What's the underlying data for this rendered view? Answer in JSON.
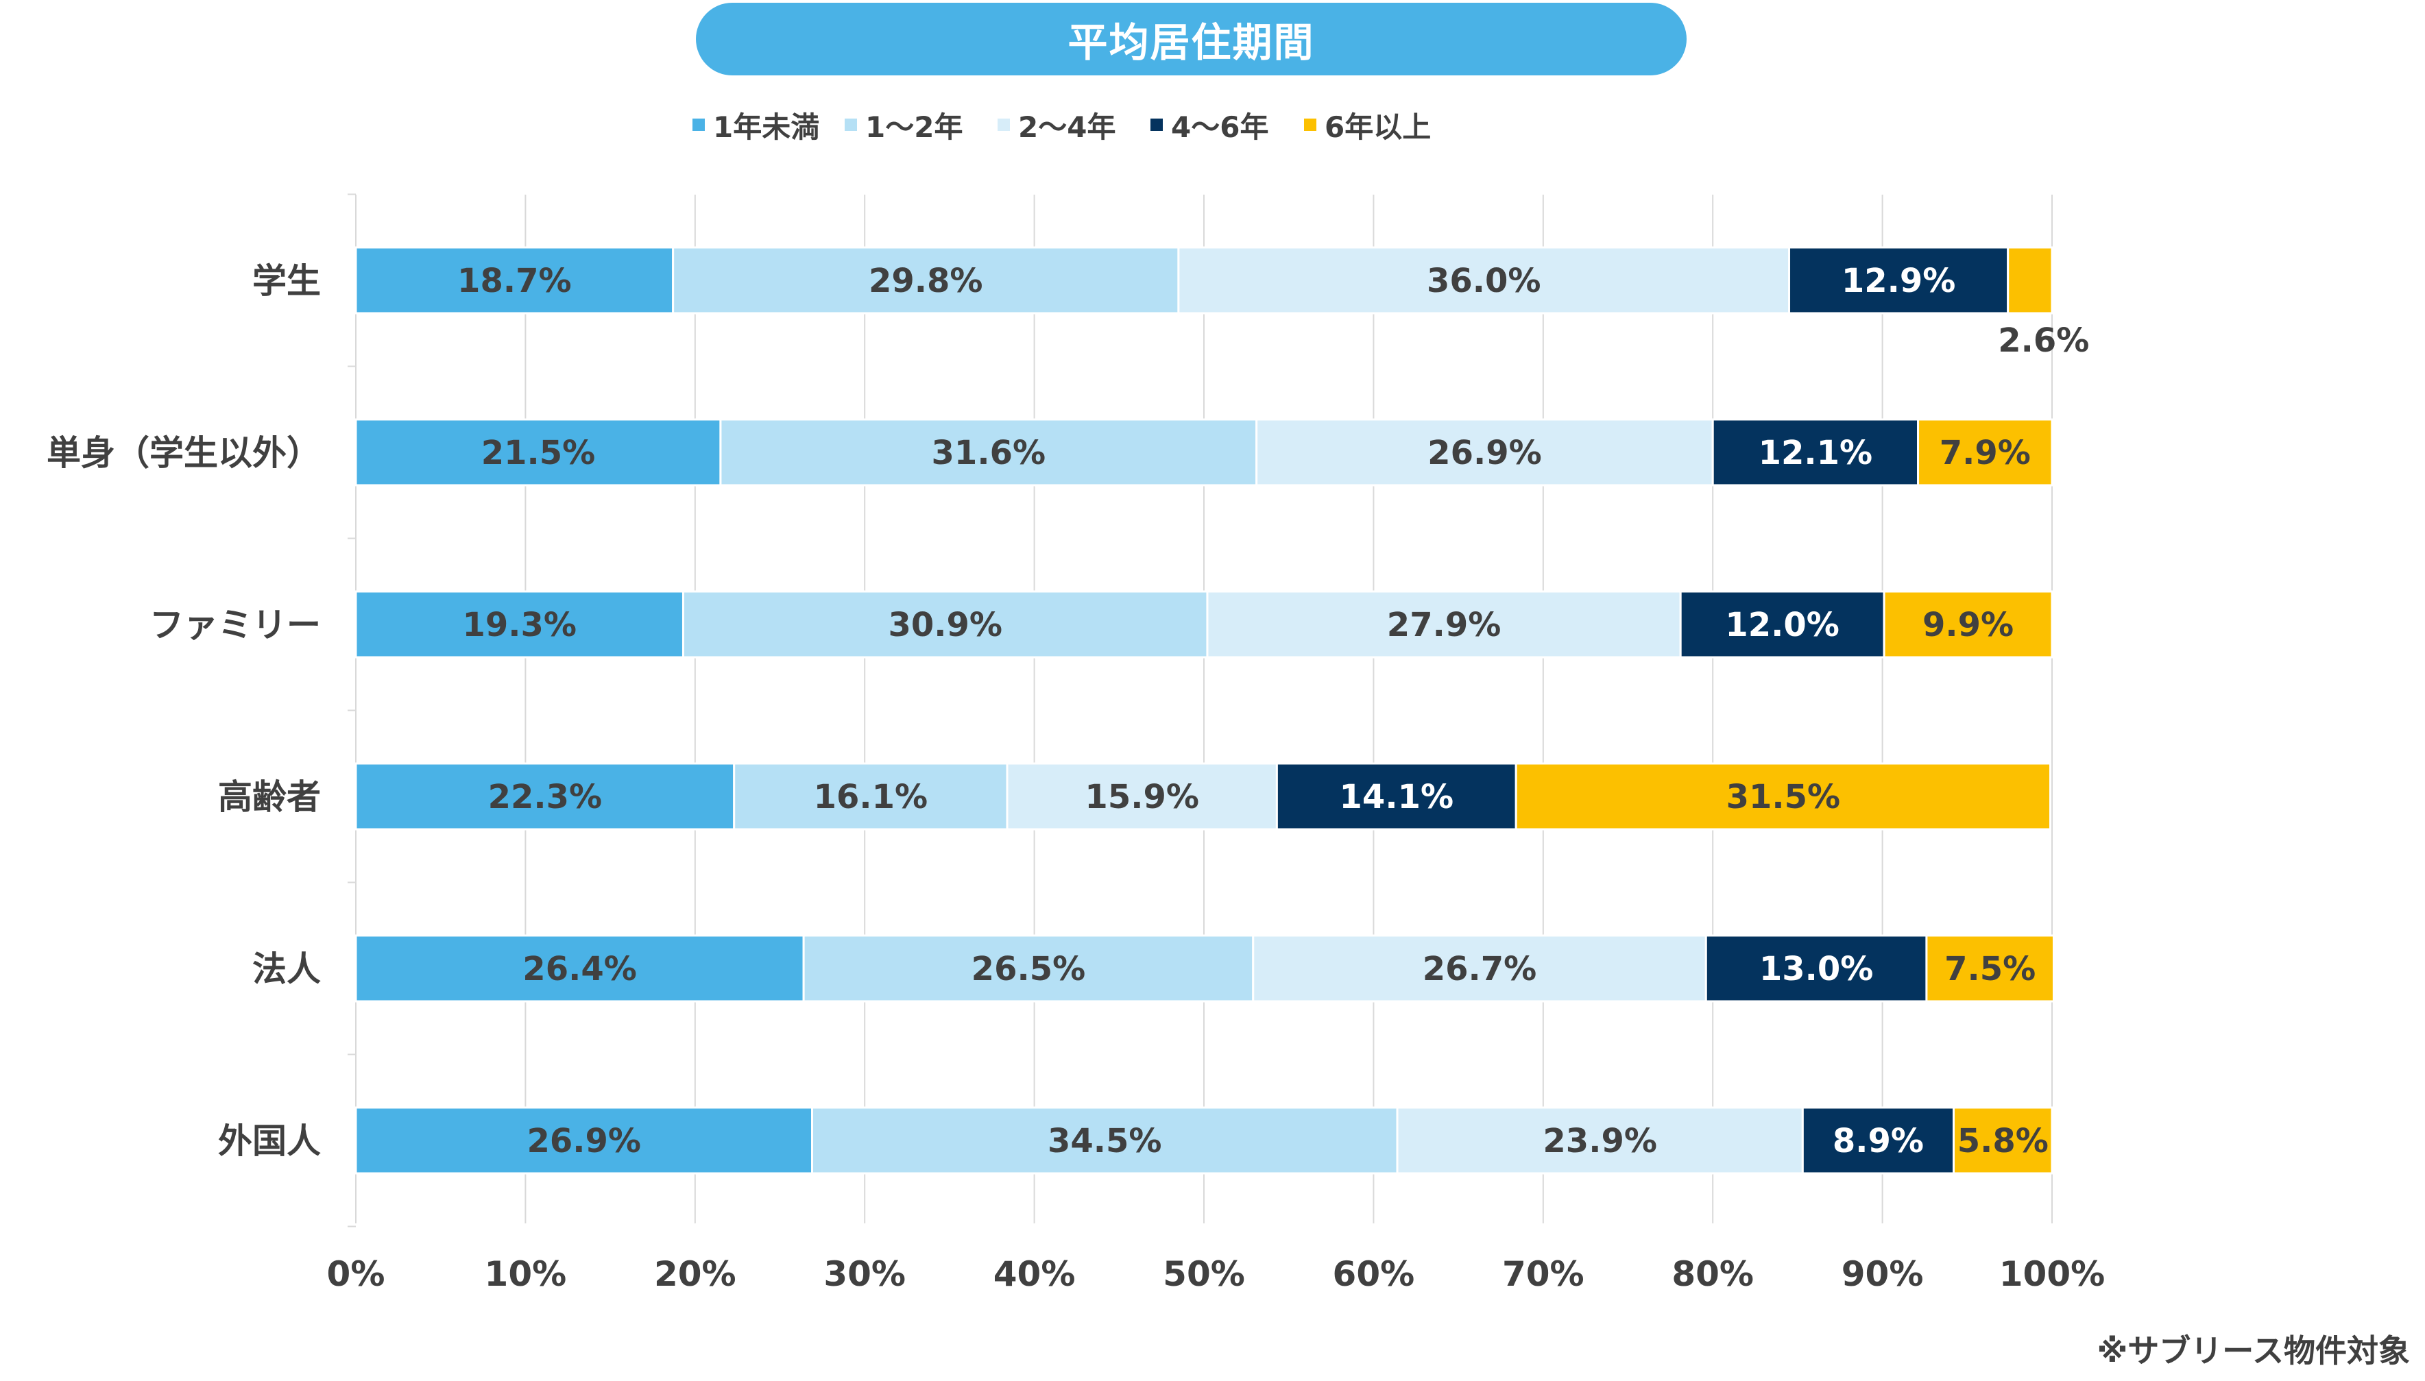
{
  "chart_data": {
    "type": "bar",
    "orientation": "horizontal",
    "stacked": true,
    "title": "平均居住期間",
    "categories": [
      "学生",
      "単身（学生以外）",
      "ファミリー",
      "高齢者",
      "法人",
      "外国人"
    ],
    "series": [
      {
        "name": "1年未満",
        "color": "#4AB2E6",
        "label_color": "#404040",
        "values": [
          18.7,
          21.5,
          19.3,
          22.3,
          26.4,
          26.9
        ]
      },
      {
        "name": "1～2年",
        "color": "#B5E0F5",
        "label_color": "#404040",
        "values": [
          29.8,
          31.6,
          30.9,
          16.1,
          26.5,
          34.5
        ]
      },
      {
        "name": "2～4年",
        "color": "#D7EDF9",
        "label_color": "#404040",
        "values": [
          36.0,
          26.9,
          27.9,
          15.9,
          26.7,
          23.9
        ]
      },
      {
        "name": "4～6年",
        "color": "#04335E",
        "label_color": "#ffffff",
        "values": [
          12.9,
          12.1,
          12.0,
          14.1,
          13.0,
          8.9
        ]
      },
      {
        "name": "6年以上",
        "color": "#FCC000",
        "label_color": "#404040",
        "values": [
          2.6,
          7.9,
          9.9,
          31.5,
          7.5,
          5.8
        ]
      }
    ],
    "value_labels": [
      [
        "18.7%",
        "29.8%",
        "36.0%",
        "12.9%",
        "2.6%"
      ],
      [
        "21.5%",
        "31.6%",
        "26.9%",
        "12.1%",
        "7.9%"
      ],
      [
        "19.3%",
        "30.9%",
        "27.9%",
        "12.0%",
        "9.9%"
      ],
      [
        "22.3%",
        "16.1%",
        "15.9%",
        "14.1%",
        "31.5%"
      ],
      [
        "26.4%",
        "26.5%",
        "26.7%",
        "13.0%",
        "7.5%"
      ],
      [
        "26.9%",
        "34.5%",
        "23.9%",
        "8.9%",
        "5.8%"
      ]
    ],
    "x_ticks": [
      "0%",
      "10%",
      "20%",
      "30%",
      "40%",
      "50%",
      "60%",
      "70%",
      "80%",
      "90%",
      "100%"
    ],
    "xlim": [
      0,
      100
    ],
    "grid": true,
    "legend_position": "top-center"
  },
  "note": "※サブリース物件対象",
  "colors": {
    "title_bg": "#4AB2E6",
    "grid": "#D9D9D9",
    "text": "#404040"
  }
}
